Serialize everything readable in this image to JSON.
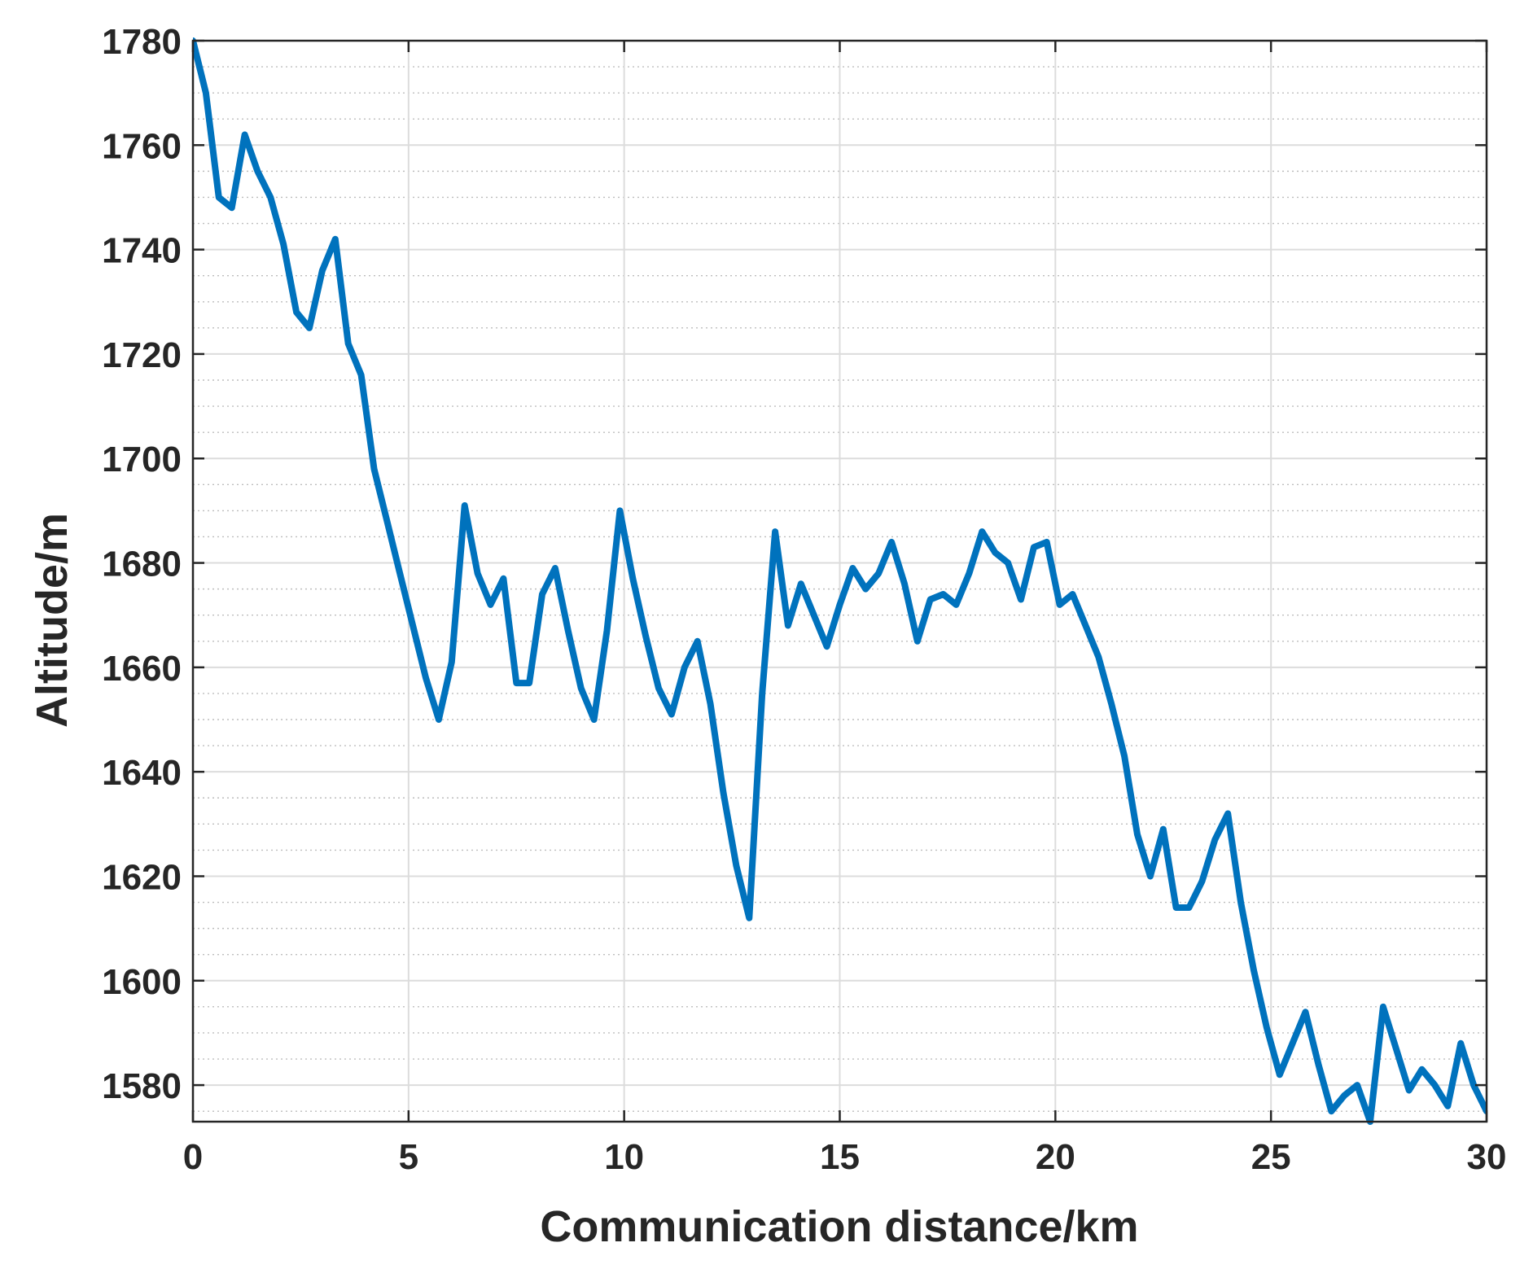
{
  "chart_data": {
    "type": "line",
    "title": "",
    "xlabel": "Communication distance/km",
    "ylabel": "Altitude/m",
    "xlim": [
      0,
      30
    ],
    "ylim": [
      1573,
      1780
    ],
    "xticks": [
      0,
      5,
      10,
      15,
      20,
      25,
      30
    ],
    "yticks": [
      1580,
      1600,
      1620,
      1640,
      1660,
      1680,
      1700,
      1720,
      1740,
      1760,
      1780
    ],
    "grid": true,
    "minor_grid": true,
    "legend": "none",
    "series": [
      {
        "color": "#0072BD",
        "x": [
          0,
          0.3,
          0.6,
          0.9,
          1.2,
          1.5,
          1.8,
          2.1,
          2.4,
          2.7,
          3.0,
          3.3,
          3.6,
          3.9,
          4.2,
          4.5,
          4.8,
          5.1,
          5.4,
          5.7,
          6.0,
          6.3,
          6.6,
          6.9,
          7.2,
          7.5,
          7.8,
          8.1,
          8.4,
          8.7,
          9.0,
          9.3,
          9.6,
          9.9,
          10.2,
          10.5,
          10.8,
          11.1,
          11.4,
          11.7,
          12.0,
          12.3,
          12.6,
          12.9,
          13.2,
          13.5,
          13.8,
          14.1,
          14.4,
          14.7,
          15.0,
          15.3,
          15.6,
          15.9,
          16.2,
          16.5,
          16.8,
          17.1,
          17.4,
          17.7,
          18.0,
          18.3,
          18.6,
          18.9,
          19.2,
          19.5,
          19.8,
          20.1,
          20.4,
          20.7,
          21.0,
          21.3,
          21.6,
          21.9,
          22.2,
          22.5,
          22.8,
          23.1,
          23.4,
          23.7,
          24.0,
          24.3,
          24.6,
          24.9,
          25.2,
          25.5,
          25.8,
          26.1,
          26.4,
          26.7,
          27.0,
          27.3,
          27.6,
          27.9,
          28.2,
          28.5,
          28.8,
          29.1,
          29.4,
          29.7,
          30.0
        ],
        "y": [
          1780,
          1770,
          1750,
          1748,
          1762,
          1755,
          1750,
          1741,
          1728,
          1725,
          1736,
          1742,
          1722,
          1716,
          1698,
          1688,
          1678,
          1668,
          1658,
          1650,
          1661,
          1691,
          1678,
          1672,
          1677,
          1657,
          1657,
          1674,
          1679,
          1667,
          1656,
          1650,
          1667,
          1690,
          1677,
          1666,
          1656,
          1651,
          1660,
          1665,
          1653,
          1636,
          1622,
          1612,
          1655,
          1686,
          1668,
          1676,
          1670,
          1664,
          1672,
          1679,
          1675,
          1678,
          1684,
          1676,
          1665,
          1673,
          1674,
          1672,
          1678,
          1686,
          1682,
          1680,
          1673,
          1683,
          1684,
          1672,
          1674,
          1668,
          1662,
          1653,
          1643,
          1628,
          1620,
          1629,
          1614,
          1614,
          1619,
          1627,
          1632,
          1615,
          1602,
          1591,
          1582,
          1588,
          1594,
          1584,
          1575,
          1578,
          1580,
          1573,
          1595,
          1587,
          1579,
          1583,
          1580,
          1576,
          1588,
          1580,
          1575
        ]
      }
    ]
  }
}
